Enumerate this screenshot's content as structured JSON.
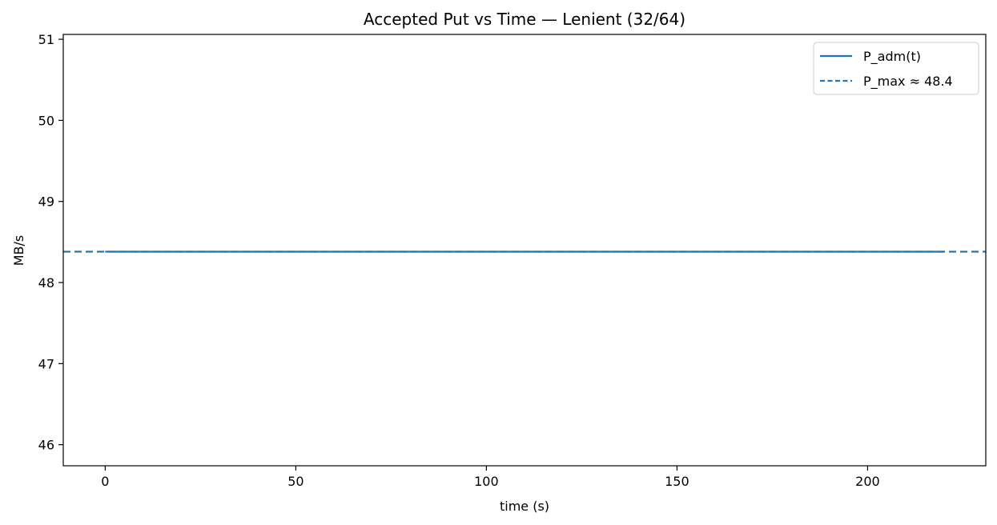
{
  "chart_data": {
    "type": "line",
    "title": "Accepted Put vs Time — Lenient (32/64)",
    "xlabel": "time (s)",
    "ylabel": "MB/s",
    "xlim": [
      -11,
      231
    ],
    "ylim": [
      45.74,
      51.06
    ],
    "x_ticks": [
      0,
      50,
      100,
      150,
      200
    ],
    "y_ticks": [
      46,
      47,
      48,
      49,
      50,
      51
    ],
    "grid": false,
    "legend_position": "top-right",
    "series": [
      {
        "name": "P_adm(t)",
        "style": "solid",
        "color": "#1f77b4",
        "x": [
          0,
          220
        ],
        "y": [
          48.38,
          48.38
        ]
      }
    ],
    "reference_lines": [
      {
        "name": "P_max ≈ 48.4",
        "style": "dashed",
        "color": "#1f77b4",
        "orientation": "horizontal",
        "y": 48.38
      }
    ]
  }
}
